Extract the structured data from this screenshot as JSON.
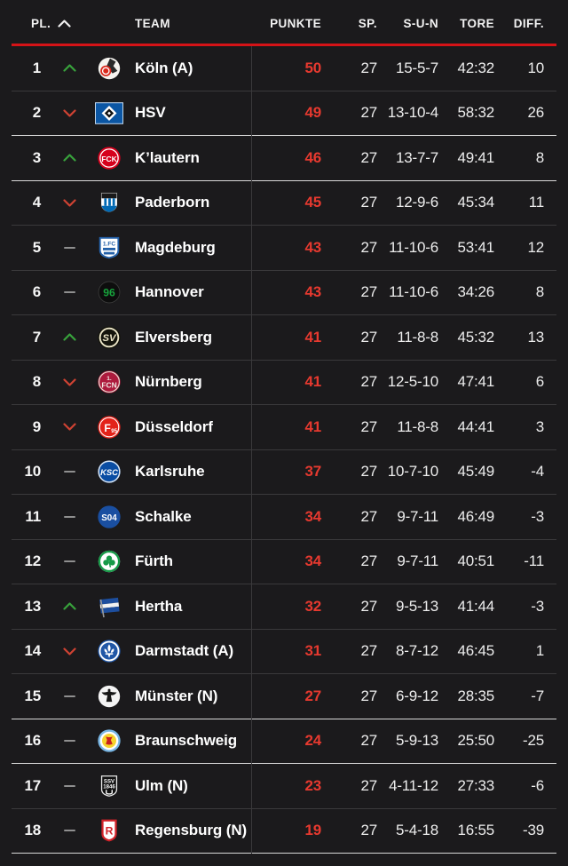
{
  "table": {
    "header": {
      "pl": "PL.",
      "sort_icon": "chevron-up-icon",
      "team": "TEAM",
      "punkte": "PUNKTE",
      "sp": "SP.",
      "sun": "S-U-N",
      "tore": "TORE",
      "diff": "DIFF."
    },
    "rows": [
      {
        "pos": "1",
        "trend": "up",
        "crest": "koeln",
        "team": "Köln (A)",
        "punkte": "50",
        "sp": "27",
        "sun": "15-5-7",
        "tore": "42:32",
        "diff": "10",
        "separator": "normal"
      },
      {
        "pos": "2",
        "trend": "down",
        "crest": "hsv",
        "team": "HSV",
        "punkte": "49",
        "sp": "27",
        "sun": "13-10-4",
        "tore": "58:32",
        "diff": "26",
        "separator": "strong"
      },
      {
        "pos": "3",
        "trend": "up",
        "crest": "fck",
        "team": "K’lautern",
        "punkte": "46",
        "sp": "27",
        "sun": "13-7-7",
        "tore": "49:41",
        "diff": "8",
        "separator": "strong"
      },
      {
        "pos": "4",
        "trend": "down",
        "crest": "paderborn",
        "team": "Paderborn",
        "punkte": "45",
        "sp": "27",
        "sun": "12-9-6",
        "tore": "45:34",
        "diff": "11",
        "separator": "normal"
      },
      {
        "pos": "5",
        "trend": "same",
        "crest": "magdeburg",
        "team": "Magdeburg",
        "punkte": "43",
        "sp": "27",
        "sun": "11-10-6",
        "tore": "53:41",
        "diff": "12",
        "separator": "normal"
      },
      {
        "pos": "6",
        "trend": "same",
        "crest": "hannover",
        "team": "Hannover",
        "punkte": "43",
        "sp": "27",
        "sun": "11-10-6",
        "tore": "34:26",
        "diff": "8",
        "separator": "normal"
      },
      {
        "pos": "7",
        "trend": "up",
        "crest": "elversberg",
        "team": "Elversberg",
        "punkte": "41",
        "sp": "27",
        "sun": "11-8-8",
        "tore": "45:32",
        "diff": "13",
        "separator": "normal"
      },
      {
        "pos": "8",
        "trend": "down",
        "crest": "nuernberg",
        "team": "Nürnberg",
        "punkte": "41",
        "sp": "27",
        "sun": "12-5-10",
        "tore": "47:41",
        "diff": "6",
        "separator": "normal"
      },
      {
        "pos": "9",
        "trend": "down",
        "crest": "duesseldorf",
        "team": "Düsseldorf",
        "punkte": "41",
        "sp": "27",
        "sun": "11-8-8",
        "tore": "44:41",
        "diff": "3",
        "separator": "normal"
      },
      {
        "pos": "10",
        "trend": "same",
        "crest": "karlsruhe",
        "team": "Karlsruhe",
        "punkte": "37",
        "sp": "27",
        "sun": "10-7-10",
        "tore": "45:49",
        "diff": "-4",
        "separator": "normal"
      },
      {
        "pos": "11",
        "trend": "same",
        "crest": "schalke",
        "team": "Schalke",
        "punkte": "34",
        "sp": "27",
        "sun": "9-7-11",
        "tore": "46:49",
        "diff": "-3",
        "separator": "normal"
      },
      {
        "pos": "12",
        "trend": "same",
        "crest": "fuerth",
        "team": "Fürth",
        "punkte": "34",
        "sp": "27",
        "sun": "9-7-11",
        "tore": "40:51",
        "diff": "-11",
        "separator": "normal"
      },
      {
        "pos": "13",
        "trend": "up",
        "crest": "hertha",
        "team": "Hertha",
        "punkte": "32",
        "sp": "27",
        "sun": "9-5-13",
        "tore": "41:44",
        "diff": "-3",
        "separator": "normal"
      },
      {
        "pos": "14",
        "trend": "down",
        "crest": "darmstadt",
        "team": "Darmstadt (A)",
        "punkte": "31",
        "sp": "27",
        "sun": "8-7-12",
        "tore": "46:45",
        "diff": "1",
        "separator": "normal"
      },
      {
        "pos": "15",
        "trend": "same",
        "crest": "muenster",
        "team": "Münster (N)",
        "punkte": "27",
        "sp": "27",
        "sun": "6-9-12",
        "tore": "28:35",
        "diff": "-7",
        "separator": "strong"
      },
      {
        "pos": "16",
        "trend": "same",
        "crest": "braunschweig",
        "team": "Braunschweig",
        "punkte": "24",
        "sp": "27",
        "sun": "5-9-13",
        "tore": "25:50",
        "diff": "-25",
        "separator": "strong"
      },
      {
        "pos": "17",
        "trend": "same",
        "crest": "ulm",
        "team": "Ulm (N)",
        "punkte": "23",
        "sp": "27",
        "sun": "4-11-12",
        "tore": "27:33",
        "diff": "-6",
        "separator": "normal"
      },
      {
        "pos": "18",
        "trend": "same",
        "crest": "regensburg",
        "team": "Regensburg (N)",
        "punkte": "19",
        "sp": "27",
        "sun": "5-4-18",
        "tore": "16:55",
        "diff": "-39",
        "separator": "strong"
      }
    ]
  },
  "colors": {
    "background": "#1b1a1c",
    "header_rule_red": "#d51317",
    "points_red": "#e6392f",
    "trend_up_green": "#38a23c",
    "trend_down_red": "#cf4233",
    "trend_same_gray": "#8f8f8f",
    "separator": "#3a393b",
    "separator_strong": "#d9d9d9",
    "text_primary": "#ffffff",
    "text_secondary": "#ededed"
  }
}
